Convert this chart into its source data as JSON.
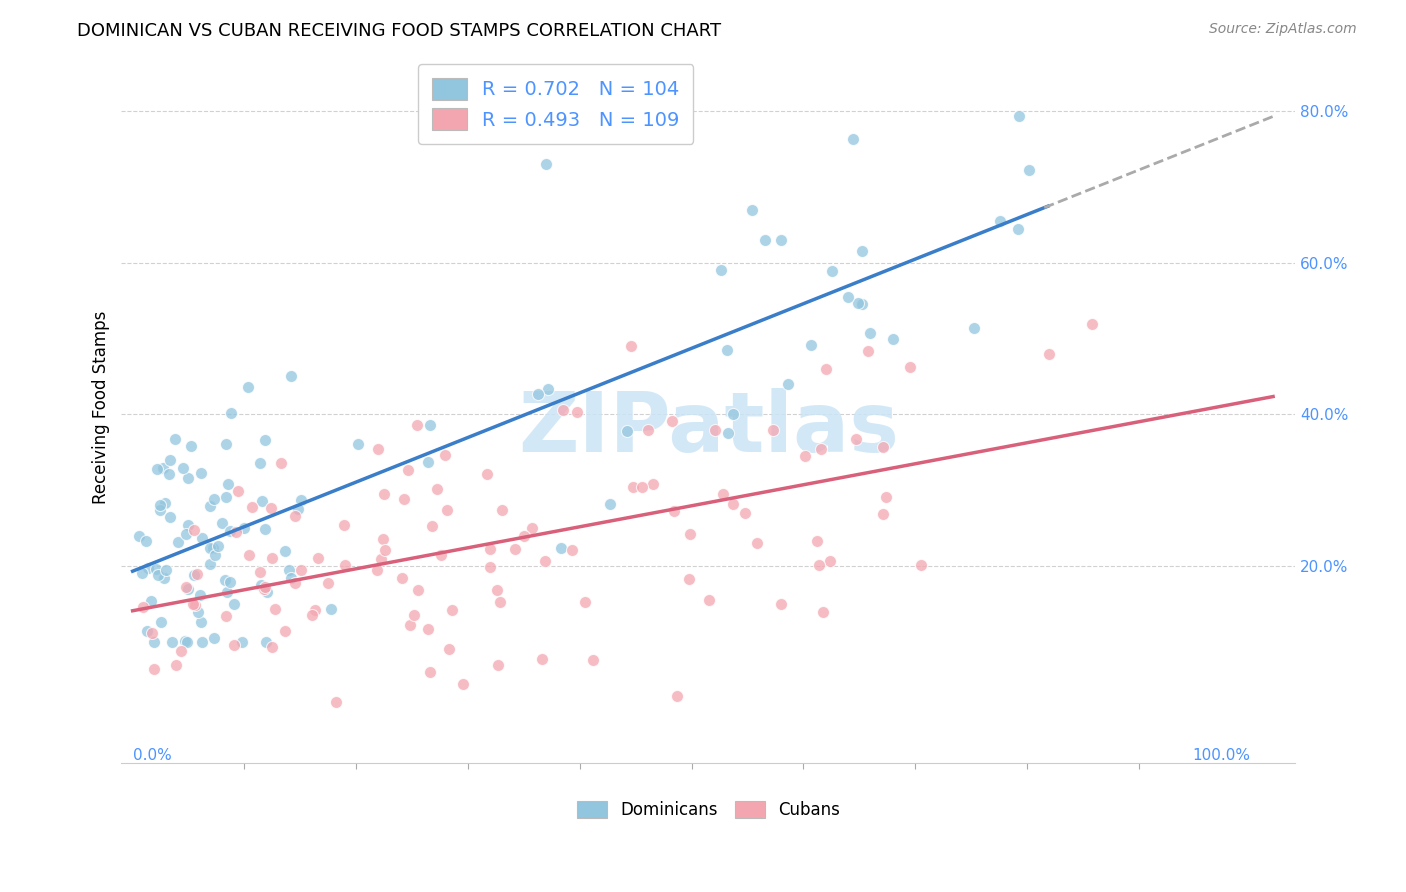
{
  "title": "DOMINICAN VS CUBAN RECEIVING FOOD STAMPS CORRELATION CHART",
  "source": "Source: ZipAtlas.com",
  "ylabel": "Receiving Food Stamps",
  "ytick_values": [
    0.2,
    0.4,
    0.6,
    0.8
  ],
  "ytick_labels": [
    "20.0%",
    "40.0%",
    "60.0%",
    "80.0%"
  ],
  "dominican_color": "#92c5de",
  "cuban_color": "#f4a6b0",
  "dominican_line_color": "#3a7dc9",
  "cuban_line_color": "#d9607a",
  "dashed_line_color": "#aaaaaa",
  "dominican_R": 0.702,
  "dominican_N": 104,
  "cuban_R": 0.493,
  "cuban_N": 109,
  "legend_label_dominican": "Dominicans",
  "legend_label_cuban": "Cubans",
  "background_color": "#ffffff",
  "grid_color": "#cccccc",
  "tick_color": "#4d94ff",
  "watermark_color": "#cce5f5",
  "title_fontsize": 13,
  "source_fontsize": 10,
  "tick_fontsize": 11,
  "legend_fontsize": 14
}
